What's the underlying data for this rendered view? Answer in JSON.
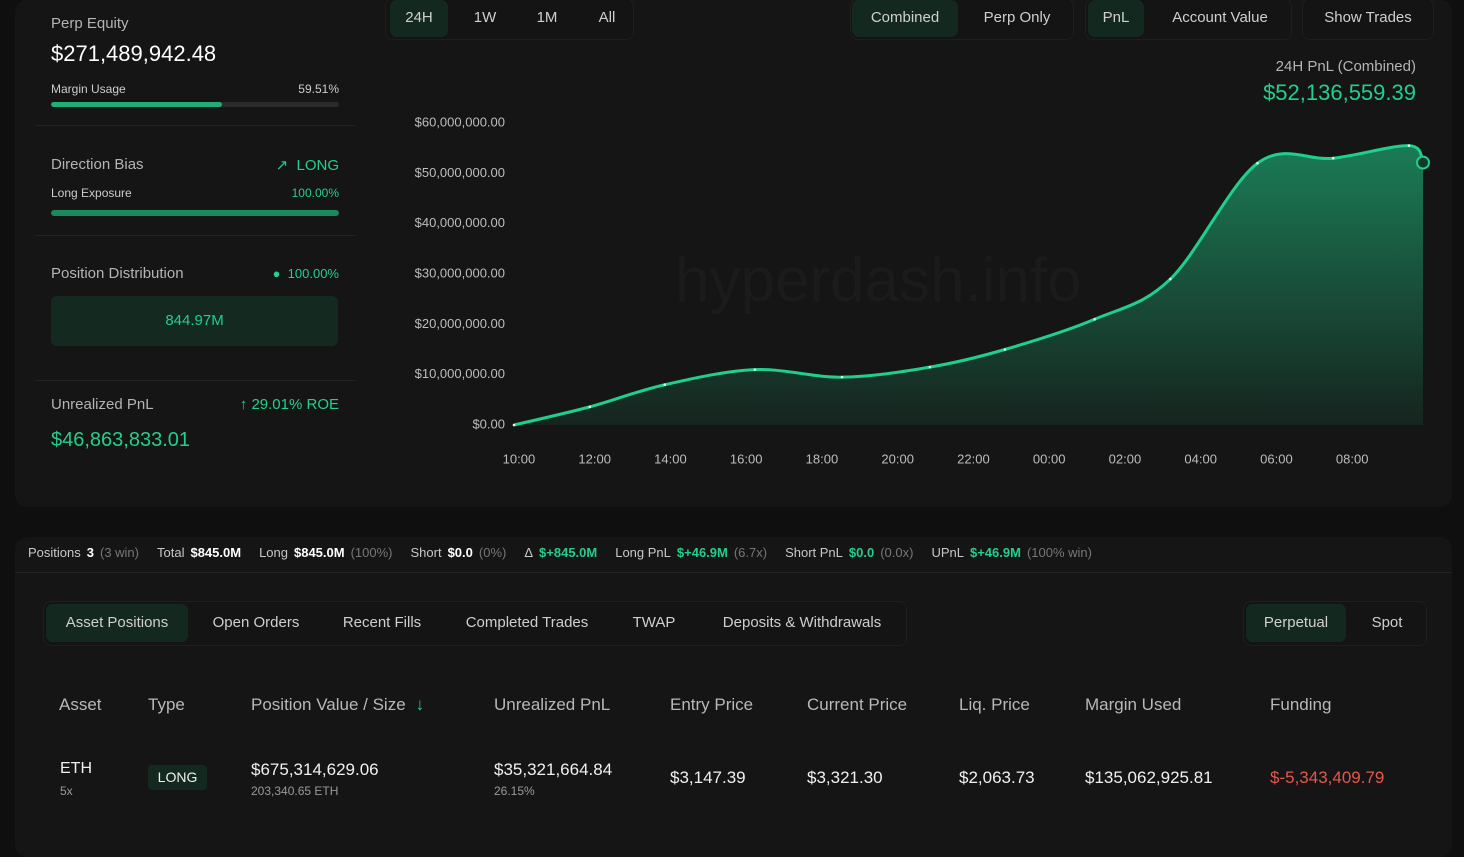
{
  "account": {
    "perp_equity_label": "Perp Equity",
    "perp_equity": "$271,489,942.48",
    "margin_usage_label": "Margin Usage",
    "margin_usage": {
      "value": 59.51,
      "label": "59.51%"
    },
    "direction_bias_label": "Direction Bias",
    "direction_bias": "LONG",
    "long_exposure_label": "Long Exposure",
    "long_exposure": {
      "value": 100,
      "label": "100.00%"
    },
    "position_distribution_label": "Position Distribution",
    "position_distribution_pct": "100.00%",
    "position_distribution_value": "844.97M",
    "unrealized_pnl_label": "Unrealized PnL",
    "roe": "29.01% ROE",
    "unrealized_pnl": "$46,863,833.01"
  },
  "range_tabs": [
    "24H",
    "1W",
    "1M",
    "All"
  ],
  "mode_tabs": [
    "Combined",
    "Perp Only"
  ],
  "metric_tabs": [
    "PnL",
    "Account Value"
  ],
  "show_trades": "Show Trades",
  "watermark": "hyperdash.info",
  "chart_data": {
    "type": "area",
    "title": "24H PnL (Combined)",
    "headline": "$52,136,559.39",
    "color": "#1fcf8c",
    "x": [
      9.87,
      11.87,
      13.85,
      16.23,
      18.53,
      20.85,
      22.83,
      25.2,
      27.2,
      29.5,
      31.5,
      33.5,
      33.87
    ],
    "values": [
      0,
      3600000,
      8000000,
      11000000,
      9500000,
      11500000,
      15000000,
      21000000,
      29000000,
      52000000,
      53000000,
      55500000,
      52136559.39
    ],
    "xlim": [
      9.87,
      33.87
    ],
    "xticks": [
      {
        "value": 10,
        "label": "10:00"
      },
      {
        "value": 12,
        "label": "12:00"
      },
      {
        "value": 14,
        "label": "14:00"
      },
      {
        "value": 16,
        "label": "16:00"
      },
      {
        "value": 18,
        "label": "18:00"
      },
      {
        "value": 20,
        "label": "20:00"
      },
      {
        "value": 22,
        "label": "22:00"
      },
      {
        "value": 24,
        "label": "00:00"
      },
      {
        "value": 26,
        "label": "02:00"
      },
      {
        "value": 28,
        "label": "04:00"
      },
      {
        "value": 30,
        "label": "06:00"
      },
      {
        "value": 32,
        "label": "08:00"
      }
    ],
    "ylim": [
      0,
      60000000
    ],
    "yticks": [
      {
        "value": 0,
        "label": "$0.00"
      },
      {
        "value": 10000000,
        "label": "$10,000,000.00"
      },
      {
        "value": 20000000,
        "label": "$20,000,000.00"
      },
      {
        "value": 30000000,
        "label": "$30,000,000.00"
      },
      {
        "value": 40000000,
        "label": "$40,000,000.00"
      },
      {
        "value": 50000000,
        "label": "$50,000,000.00"
      },
      {
        "value": 60000000,
        "label": "$60,000,000.00"
      }
    ],
    "grid": false
  },
  "summary": [
    {
      "label": "Positions",
      "value": "3",
      "note": "(3 win)"
    },
    {
      "label": "Total",
      "value": "$845.0M"
    },
    {
      "label": "Long",
      "value": "$845.0M",
      "note": "(100%)"
    },
    {
      "label": "Short",
      "value": "$0.0",
      "note": "(0%)"
    },
    {
      "label": "Δ",
      "value": "$+845.0M"
    },
    {
      "label": "Long PnL",
      "value": "$+46.9M",
      "note": "(6.7x)"
    },
    {
      "label": "Short PnL",
      "value": "$0.0",
      "note": "(0.0x)"
    },
    {
      "label": "UPnL",
      "value": "$+46.9M",
      "note": "(100% win)"
    }
  ],
  "table_tabs": [
    "Asset Positions",
    "Open Orders",
    "Recent Fills",
    "Completed Trades",
    "TWAP",
    "Deposits & Withdrawals"
  ],
  "market_tabs": [
    "Perpetual",
    "Spot"
  ],
  "table": {
    "headers": [
      "Asset",
      "Type",
      "Position Value / Size",
      "Unrealized PnL",
      "Entry Price",
      "Current Price",
      "Liq. Price",
      "Margin Used",
      "Funding"
    ],
    "rows": [
      [
        {
          "main": "ETH",
          "sub": "5x"
        },
        "LONG",
        {
          "main": "$675,314,629.06",
          "sub": "203,340.65 ETH"
        },
        {
          "main": "$35,321,664.84",
          "sub": "26.15%"
        },
        "$3,147.39",
        "$3,321.30",
        "$2,063.73",
        "$135,062,925.81",
        "$-5,343,409.79"
      ]
    ]
  }
}
